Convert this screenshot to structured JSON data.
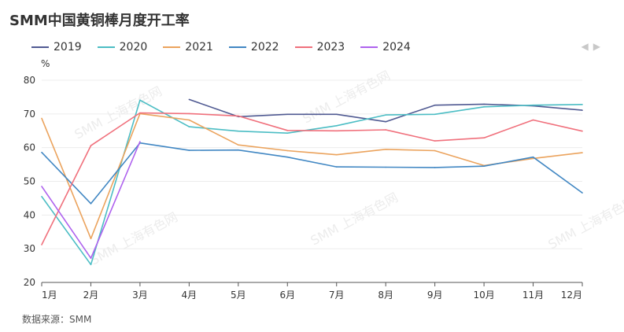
{
  "title": "SMM中国黄铜棒月度开工率",
  "unit": "%",
  "source": "数据来源：SMM",
  "watermark": "SMM 上海有色网",
  "pager": {
    "prev": "◀",
    "next": "▶"
  },
  "chart_data": {
    "type": "line",
    "title": "SMM中国黄铜棒月度开工率",
    "ylabel": "%",
    "ylim": [
      20,
      80
    ],
    "yticks": [
      20,
      30,
      40,
      50,
      60,
      70,
      80
    ],
    "categories": [
      "1月",
      "2月",
      "3月",
      "4月",
      "5月",
      "6月",
      "7月",
      "8月",
      "9月",
      "10月",
      "11月",
      "12月"
    ],
    "grid": true,
    "legend_position": "top-left",
    "series": [
      {
        "name": "2019",
        "color": "#505a92",
        "values": [
          null,
          null,
          null,
          74.3,
          69.2,
          69.9,
          69.9,
          67.7,
          72.6,
          72.9,
          72.4,
          71.1
        ]
      },
      {
        "name": "2020",
        "color": "#4bbdc4",
        "values": [
          45.5,
          25.3,
          74.1,
          66.2,
          64.9,
          64.3,
          66.5,
          69.7,
          69.9,
          72.1,
          72.6,
          72.8
        ]
      },
      {
        "name": "2021",
        "color": "#eba35d",
        "values": [
          68.7,
          33.0,
          70.1,
          68.2,
          60.8,
          59.1,
          57.9,
          59.5,
          59.1,
          54.7,
          56.8,
          58.5
        ]
      },
      {
        "name": "2022",
        "color": "#4187c3",
        "values": [
          58.6,
          43.4,
          61.4,
          59.2,
          59.3,
          57.2,
          54.3,
          54.2,
          54.1,
          54.5,
          57.2,
          46.6
        ]
      },
      {
        "name": "2023",
        "color": "#f0707c",
        "values": [
          31.2,
          60.6,
          70.3,
          70.1,
          69.4,
          65.1,
          65.0,
          65.3,
          62.0,
          62.9,
          68.2,
          64.9
        ]
      },
      {
        "name": "2024",
        "color": "#ae62ee",
        "values": [
          48.5,
          27.2,
          61.8,
          null,
          null,
          null,
          null,
          null,
          null,
          null,
          null,
          null
        ]
      }
    ]
  }
}
